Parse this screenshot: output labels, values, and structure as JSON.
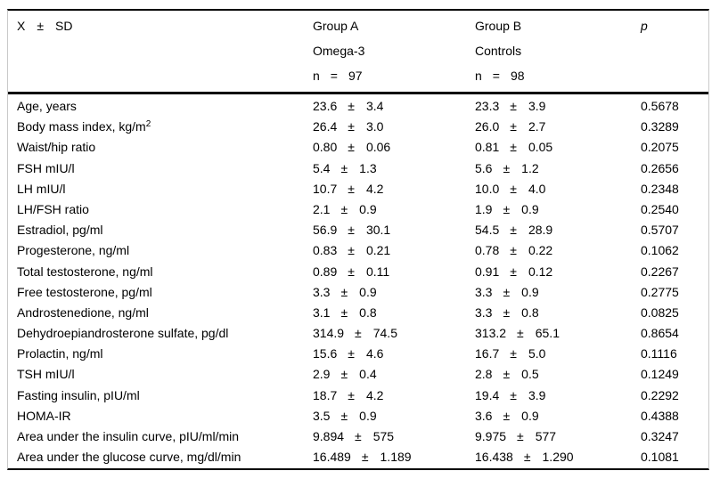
{
  "header": {
    "stat": {
      "x": "X",
      "pm": "±",
      "sd": "SD"
    },
    "group_a": {
      "title": "Group A",
      "subtitle": "Omega-3",
      "n_label": "n",
      "eq": "=",
      "n_value": "97"
    },
    "group_b": {
      "title": "Group B",
      "subtitle": "Controls",
      "n_label": "n",
      "eq": "=",
      "n_value": "98"
    },
    "p_label": "p"
  },
  "table": {
    "plus_minus": "±",
    "rows": [
      {
        "label": "Age, years",
        "a_mean": "23.6",
        "a_sd": "3.4",
        "b_mean": "23.3",
        "b_sd": "3.9",
        "p": "0.5678"
      },
      {
        "label": "Body mass index, kg/m",
        "sup": "2",
        "a_mean": "26.4",
        "a_sd": "3.0",
        "b_mean": "26.0",
        "b_sd": "2.7",
        "p": "0.3289"
      },
      {
        "label": "Waist/hip ratio",
        "a_mean": "0.80",
        "a_sd": "0.06",
        "b_mean": "0.81",
        "b_sd": "0.05",
        "p": "0.2075"
      },
      {
        "label": "FSH mIU/l",
        "a_mean": "5.4",
        "a_sd": "1.3",
        "b_mean": "5.6",
        "b_sd": "1.2",
        "p": "0.2656"
      },
      {
        "label": "LH mIU/l",
        "a_mean": "10.7",
        "a_sd": "4.2",
        "b_mean": "10.0",
        "b_sd": "4.0",
        "p": "0.2348"
      },
      {
        "label": "LH/FSH ratio",
        "a_mean": "2.1",
        "a_sd": "0.9",
        "b_mean": "1.9",
        "b_sd": "0.9",
        "p": "0.2540"
      },
      {
        "label": "Estradiol, pg/ml",
        "a_mean": "56.9",
        "a_sd": "30.1",
        "b_mean": "54.5",
        "b_sd": "28.9",
        "p": "0.5707"
      },
      {
        "label": "Progesterone, ng/ml",
        "a_mean": "0.83",
        "a_sd": "0.21",
        "b_mean": "0.78",
        "b_sd": "0.22",
        "p": "0.1062"
      },
      {
        "label": "Total testosterone, ng/ml",
        "a_mean": "0.89",
        "a_sd": "0.11",
        "b_mean": "0.91",
        "b_sd": "0.12",
        "p": "0.2267"
      },
      {
        "label": "Free testosterone, pg/ml",
        "a_mean": "3.3",
        "a_sd": "0.9",
        "b_mean": "3.3",
        "b_sd": "0.9",
        "p": "0.2775"
      },
      {
        "label": "Androstenedione, ng/ml",
        "a_mean": "3.1",
        "a_sd": "0.8",
        "b_mean": "3.3",
        "b_sd": "0.8",
        "p": "0.0825"
      },
      {
        "label": "Dehydroepiandrosterone sulfate, pg/dl",
        "a_mean": "314.9",
        "a_sd": "74.5",
        "b_mean": "313.2",
        "b_sd": "65.1",
        "p": "0.8654"
      },
      {
        "label": "Prolactin, ng/ml",
        "a_mean": "15.6",
        "a_sd": "4.6",
        "b_mean": "16.7",
        "b_sd": "5.0",
        "p": "0.1116"
      },
      {
        "label": "TSH mIU/l",
        "a_mean": "2.9",
        "a_sd": "0.4",
        "b_mean": "2.8",
        "b_sd": "0.5",
        "p": "0.1249"
      },
      {
        "label": "Fasting insulin, pIU/ml",
        "a_mean": "18.7",
        "a_sd": "4.2",
        "b_mean": "19.4",
        "b_sd": "3.9",
        "p": "0.2292"
      },
      {
        "label": "HOMA-IR",
        "a_mean": "3.5",
        "a_sd": "0.9",
        "b_mean": "3.6",
        "b_sd": "0.9",
        "p": "0.4388"
      },
      {
        "label": "Area under the insulin curve, pIU/ml/min",
        "a_mean": "9.894",
        "a_sd": "575",
        "b_mean": "9.975",
        "b_sd": "577",
        "p": "0.3247"
      },
      {
        "label": "Area under the glucose curve, mg/dl/min",
        "a_mean": "16.489",
        "a_sd": "1.189",
        "b_mean": "16.438",
        "b_sd": "1.290",
        "p": "0.1081"
      }
    ]
  },
  "colors": {
    "background": "#ffffff",
    "text": "#000000",
    "horizontal_rule": "#000000",
    "side_border": "#c9c9c9"
  }
}
